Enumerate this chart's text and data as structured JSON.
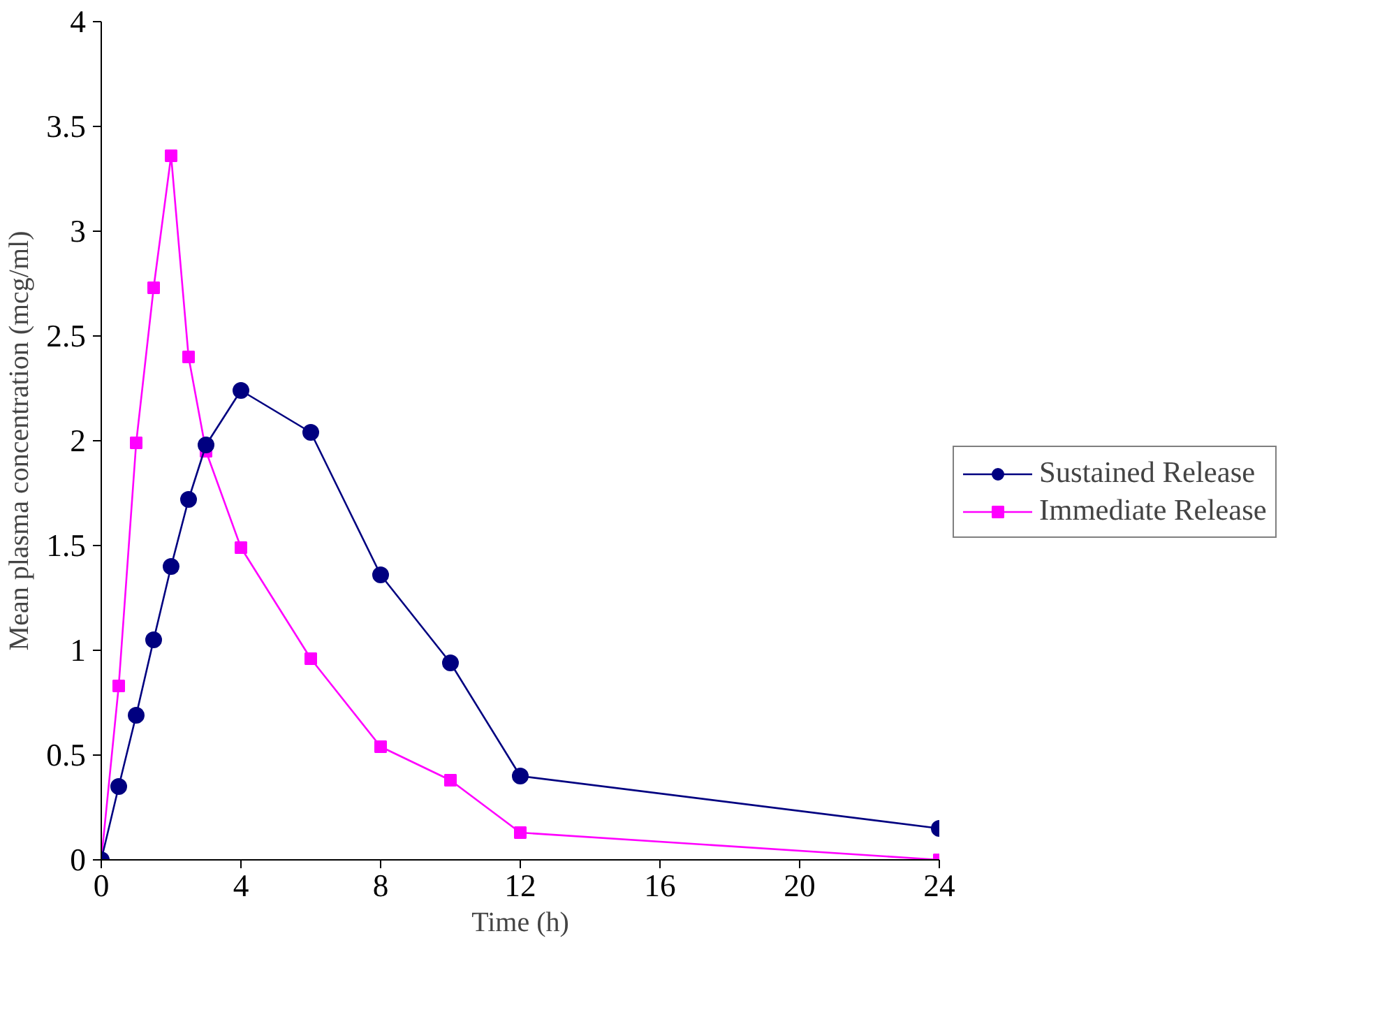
{
  "chart_data": {
    "type": "line",
    "xlabel": "Time (h)",
    "ylabel": "Mean plasma concentration (mcg/ml)",
    "x": [
      0,
      0.5,
      1,
      1.5,
      2,
      2.5,
      3,
      4,
      6,
      8,
      10,
      12,
      24
    ],
    "series": [
      {
        "name": "Sustained Release",
        "color": "#000080",
        "marker": "circle",
        "values": [
          0,
          0.35,
          0.69,
          1.05,
          1.4,
          1.72,
          1.98,
          2.24,
          2.04,
          1.36,
          0.94,
          0.4,
          0.15
        ]
      },
      {
        "name": "Immediate Release",
        "color": "#ff00ff",
        "marker": "square",
        "values": [
          0,
          0.83,
          1.99,
          2.73,
          3.36,
          2.4,
          1.95,
          1.49,
          0.96,
          0.54,
          0.38,
          0.13,
          0
        ]
      }
    ],
    "xlim": [
      0,
      24
    ],
    "xticks": [
      0,
      4,
      8,
      12,
      16,
      20,
      24
    ],
    "ylim": [
      0,
      4
    ],
    "yticks": [
      0,
      0.5,
      1,
      1.5,
      2,
      2.5,
      3,
      3.5,
      4
    ],
    "grid": false,
    "legend": "right",
    "line_style": "solid"
  }
}
